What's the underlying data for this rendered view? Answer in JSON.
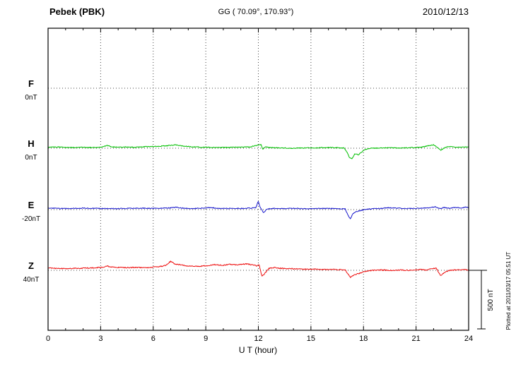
{
  "header": {
    "station": "Pebek (PBK)",
    "coords": "GG ( 70.09°, 170.93°)",
    "date": "2010/12/13"
  },
  "axis": {
    "xlabel": "U T (hour)",
    "tick_hours": [
      0,
      3,
      6,
      9,
      12,
      15,
      18,
      21,
      24
    ],
    "tick_labels": [
      "0",
      "3",
      "6",
      "9",
      "12",
      "15",
      "18",
      "21",
      "24"
    ]
  },
  "footer_note": "Plotted at 2011/03/17 05:51 UT",
  "chart_data": {
    "type": "line",
    "title": "Pebek (PBK) magnetogram 2010/12/13",
    "xlabel": "U T (hour)",
    "x_range": [
      0,
      24
    ],
    "grid": "dotted",
    "scale": {
      "label": "500 nT",
      "nT": 500
    },
    "components": [
      {
        "name": "F",
        "label": "F",
        "baseline_label": "0nT",
        "color": "#FFA500",
        "noise_nT": 0,
        "anchors": []
      },
      {
        "name": "H",
        "label": "H",
        "baseline_label": "0nT",
        "color": "#00C000",
        "noise_nT": 3.5,
        "anchors": [
          [
            0,
            8
          ],
          [
            0.5,
            10
          ],
          [
            1,
            8
          ],
          [
            1.5,
            6
          ],
          [
            2,
            8
          ],
          [
            2.5,
            6
          ],
          [
            3,
            10
          ],
          [
            3.4,
            22
          ],
          [
            3.7,
            10
          ],
          [
            4,
            8
          ],
          [
            4.5,
            10
          ],
          [
            5,
            8
          ],
          [
            5.5,
            12
          ],
          [
            6,
            14
          ],
          [
            6.5,
            18
          ],
          [
            7,
            24
          ],
          [
            7.3,
            28
          ],
          [
            7.6,
            20
          ],
          [
            8,
            14
          ],
          [
            8.5,
            10
          ],
          [
            9,
            8
          ],
          [
            9.5,
            6
          ],
          [
            10,
            6
          ],
          [
            10.5,
            8
          ],
          [
            11,
            8
          ],
          [
            11.5,
            10
          ],
          [
            11.8,
            20
          ],
          [
            12,
            28
          ],
          [
            12.15,
            30
          ],
          [
            12.25,
            -8
          ],
          [
            12.4,
            12
          ],
          [
            12.6,
            6
          ],
          [
            13,
            4
          ],
          [
            13.5,
            2
          ],
          [
            14,
            0
          ],
          [
            14.5,
            2
          ],
          [
            15,
            2
          ],
          [
            15.5,
            4
          ],
          [
            16,
            6
          ],
          [
            16.5,
            4
          ],
          [
            16.9,
            2
          ],
          [
            17.05,
            -30
          ],
          [
            17.2,
            -80
          ],
          [
            17.35,
            -88
          ],
          [
            17.5,
            -45
          ],
          [
            17.7,
            -55
          ],
          [
            17.9,
            -30
          ],
          [
            18.1,
            -10
          ],
          [
            18.4,
            0
          ],
          [
            19,
            2
          ],
          [
            19.5,
            4
          ],
          [
            20,
            2
          ],
          [
            20.5,
            4
          ],
          [
            21,
            6
          ],
          [
            21.4,
            10
          ],
          [
            21.7,
            22
          ],
          [
            22,
            28
          ],
          [
            22.2,
            10
          ],
          [
            22.4,
            -18
          ],
          [
            22.6,
            2
          ],
          [
            22.9,
            16
          ],
          [
            23.2,
            8
          ],
          [
            23.6,
            10
          ],
          [
            24,
            8
          ]
        ]
      },
      {
        "name": "E",
        "label": "E",
        "baseline_label": "-20nT",
        "color": "#1818CC",
        "noise_nT": 3.5,
        "anchors": [
          [
            0,
            12
          ],
          [
            0.5,
            10
          ],
          [
            1,
            8
          ],
          [
            1.5,
            10
          ],
          [
            2,
            12
          ],
          [
            2.5,
            10
          ],
          [
            3,
            10
          ],
          [
            3.5,
            8
          ],
          [
            4,
            8
          ],
          [
            4.5,
            10
          ],
          [
            5,
            10
          ],
          [
            5.5,
            12
          ],
          [
            6,
            10
          ],
          [
            6.5,
            12
          ],
          [
            7,
            14
          ],
          [
            7.3,
            20
          ],
          [
            7.6,
            14
          ],
          [
            8,
            10
          ],
          [
            8.5,
            10
          ],
          [
            9,
            14
          ],
          [
            9.3,
            18
          ],
          [
            9.6,
            12
          ],
          [
            10,
            10
          ],
          [
            10.5,
            10
          ],
          [
            11,
            10
          ],
          [
            11.5,
            12
          ],
          [
            11.85,
            14
          ],
          [
            12,
            70
          ],
          [
            12.1,
            20
          ],
          [
            12.3,
            -28
          ],
          [
            12.5,
            6
          ],
          [
            12.8,
            10
          ],
          [
            13,
            10
          ],
          [
            13.5,
            8
          ],
          [
            14,
            10
          ],
          [
            14.5,
            8
          ],
          [
            15,
            8
          ],
          [
            15.5,
            10
          ],
          [
            16,
            10
          ],
          [
            16.5,
            8
          ],
          [
            16.95,
            6
          ],
          [
            17.15,
            -55
          ],
          [
            17.25,
            -76
          ],
          [
            17.4,
            -35
          ],
          [
            17.6,
            -15
          ],
          [
            17.9,
            -5
          ],
          [
            18.2,
            4
          ],
          [
            18.6,
            8
          ],
          [
            19,
            10
          ],
          [
            19.4,
            16
          ],
          [
            19.8,
            12
          ],
          [
            20.2,
            10
          ],
          [
            20.6,
            10
          ],
          [
            21,
            10
          ],
          [
            21.4,
            12
          ],
          [
            21.8,
            16
          ],
          [
            22.1,
            24
          ],
          [
            22.35,
            8
          ],
          [
            22.6,
            18
          ],
          [
            22.9,
            12
          ],
          [
            23.2,
            18
          ],
          [
            23.5,
            14
          ],
          [
            23.8,
            20
          ],
          [
            24,
            18
          ]
        ]
      },
      {
        "name": "Z",
        "label": "Z",
        "baseline_label": "40nT",
        "color": "#EE1111",
        "noise_nT": 4.5,
        "anchors": [
          [
            0,
            18
          ],
          [
            0.5,
            16
          ],
          [
            1,
            14
          ],
          [
            1.5,
            16
          ],
          [
            2,
            18
          ],
          [
            2.5,
            20
          ],
          [
            3,
            24
          ],
          [
            3.4,
            35
          ],
          [
            3.7,
            26
          ],
          [
            4,
            24
          ],
          [
            4.5,
            22
          ],
          [
            5,
            24
          ],
          [
            5.5,
            22
          ],
          [
            6,
            26
          ],
          [
            6.4,
            32
          ],
          [
            6.7,
            40
          ],
          [
            7,
            76
          ],
          [
            7.2,
            55
          ],
          [
            7.5,
            47
          ],
          [
            7.8,
            40
          ],
          [
            8,
            35
          ],
          [
            8.5,
            33
          ],
          [
            9,
            38
          ],
          [
            9.5,
            47
          ],
          [
            10,
            42
          ],
          [
            10.3,
            50
          ],
          [
            10.7,
            45
          ],
          [
            11,
            50
          ],
          [
            11.3,
            53
          ],
          [
            11.6,
            47
          ],
          [
            11.9,
            38
          ],
          [
            12.05,
            45
          ],
          [
            12.2,
            -53
          ],
          [
            12.35,
            -30
          ],
          [
            12.6,
            15
          ],
          [
            12.9,
            22
          ],
          [
            13.2,
            18
          ],
          [
            13.6,
            14
          ],
          [
            14,
            12
          ],
          [
            14.5,
            10
          ],
          [
            15,
            10
          ],
          [
            15.5,
            8
          ],
          [
            16,
            8
          ],
          [
            16.5,
            6
          ],
          [
            16.95,
            4
          ],
          [
            17.25,
            -59
          ],
          [
            17.5,
            -35
          ],
          [
            17.8,
            -24
          ],
          [
            18.1,
            -8
          ],
          [
            18.5,
            0
          ],
          [
            19,
            2
          ],
          [
            19.5,
            0
          ],
          [
            20,
            2
          ],
          [
            20.5,
            0
          ],
          [
            21,
            4
          ],
          [
            21.3,
            8
          ],
          [
            21.6,
            2
          ],
          [
            21.9,
            14
          ],
          [
            22.15,
            18
          ],
          [
            22.4,
            -47
          ],
          [
            22.6,
            -18
          ],
          [
            22.9,
            0
          ],
          [
            23.2,
            2
          ],
          [
            23.6,
            4
          ],
          [
            24,
            4
          ]
        ]
      }
    ]
  }
}
